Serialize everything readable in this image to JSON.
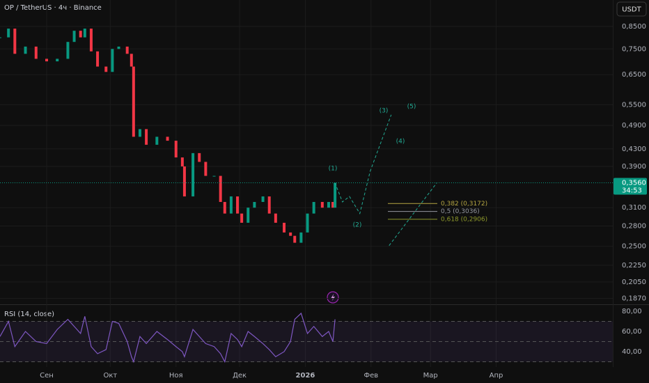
{
  "header": {
    "title": "OP / TetherUS · 4ч · Binance",
    "currency_button": "USDT"
  },
  "chart_data": [
    {
      "type": "candlestick",
      "log_scale": true,
      "grid": true,
      "up_color": "#089981",
      "down_color": "#f23645",
      "x": [
        -22,
        -18,
        -15,
        -10,
        -5,
        0,
        5,
        10,
        13,
        16,
        18,
        21,
        24,
        28,
        31,
        34,
        38,
        40,
        41,
        44,
        47,
        52,
        57,
        61,
        64,
        65,
        69,
        72,
        75,
        79,
        82,
        84,
        87,
        90,
        92,
        95,
        98,
        102,
        105,
        108,
        112,
        115,
        117,
        120,
        123,
        126,
        130,
        133,
        135,
        136
      ],
      "series": [
        {
          "values": [
            0.8,
            0.84,
            0.73,
            0.76,
            0.71,
            0.7,
            0.71,
            0.78,
            0.83,
            0.8,
            0.84,
            0.74,
            0.68,
            0.66,
            0.75,
            0.76,
            0.73,
            0.68,
            0.46,
            0.48,
            0.44,
            0.46,
            0.45,
            0.41,
            0.39,
            0.33,
            0.42,
            0.4,
            0.37,
            0.37,
            0.32,
            0.3,
            0.33,
            0.3,
            0.285,
            0.31,
            0.32,
            0.33,
            0.3,
            0.285,
            0.27,
            0.265,
            0.255,
            0.27,
            0.3,
            0.32,
            0.31,
            0.32,
            0.31,
            0.356
          ]
        }
      ],
      "xlim": [
        -22,
        267
      ],
      "xticks": [
        {
          "value": 0,
          "label": "Сен"
        },
        {
          "value": 30,
          "label": "Окт"
        },
        {
          "value": 61,
          "label": "Ноя"
        },
        {
          "value": 91,
          "label": "Дек"
        },
        {
          "value": 122,
          "label": "2026"
        },
        {
          "value": 153,
          "label": "Фев"
        },
        {
          "value": 181,
          "label": "Мар"
        },
        {
          "value": 212,
          "label": "Апр"
        }
      ],
      "ylim": [
        0.181,
        0.985
      ],
      "yticks": [
        {
          "value": 0.85,
          "label": "0,8500"
        },
        {
          "value": 0.75,
          "label": "0,7500"
        },
        {
          "value": 0.65,
          "label": "0,6500"
        },
        {
          "value": 0.55,
          "label": "0,5500"
        },
        {
          "value": 0.49,
          "label": "0,4900"
        },
        {
          "value": 0.43,
          "label": "0,4300"
        },
        {
          "value": 0.39,
          "label": "0,3900"
        },
        {
          "value": 0.31,
          "label": "0,3100"
        },
        {
          "value": 0.28,
          "label": "0,2800"
        },
        {
          "value": 0.25,
          "label": "0,2500"
        },
        {
          "value": 0.225,
          "label": "0,2250"
        },
        {
          "value": 0.205,
          "label": "0,2050"
        },
        {
          "value": 0.187,
          "label": "0,1870"
        }
      ],
      "last_price": {
        "value": 0.356,
        "label": "0,3560",
        "countdown": "34:53",
        "color": "#089981"
      },
      "projections": [
        {
          "x": [
            136,
            139.5,
            142.8,
            147.7,
            152.6,
            162.5
          ],
          "values": [
            0.356,
            0.32,
            0.33,
            0.3,
            0.38,
            0.52
          ],
          "color": "#22ab94"
        },
        {
          "x": [
            161.5,
            184
          ],
          "values": [
            0.251,
            0.356
          ],
          "color": "#22ab94"
        }
      ],
      "wave_labels": [
        "(1)",
        "(2)",
        "(3)",
        "(4)",
        "(5)"
      ],
      "fib_levels": [
        {
          "value": 0.3172,
          "label": "0,382 (0,3172)",
          "color": "#b5a642"
        },
        {
          "value": 0.3036,
          "label": "0,5 (0,3036)",
          "color": "#9598a1"
        },
        {
          "value": 0.2906,
          "label": "0,618 (0,2906)",
          "color": "#8f9a2c"
        }
      ]
    },
    {
      "type": "line",
      "title": "RSI (14, close)",
      "color": "#7e57c2",
      "x": [
        -22,
        -18,
        -15,
        -10,
        -5,
        0,
        5,
        10,
        13,
        16,
        18,
        21,
        24,
        28,
        31,
        34,
        38,
        40,
        41,
        44,
        47,
        52,
        57,
        61,
        64,
        65,
        69,
        72,
        75,
        79,
        82,
        84,
        87,
        90,
        92,
        95,
        98,
        102,
        105,
        108,
        112,
        115,
        117,
        120,
        123,
        126,
        130,
        133,
        135,
        136
      ],
      "series": [
        {
          "name": "RSI",
          "values": [
            55,
            70,
            45,
            60,
            50,
            48,
            62,
            72,
            65,
            58,
            75,
            45,
            38,
            42,
            70,
            68,
            50,
            35,
            30,
            55,
            48,
            60,
            52,
            45,
            40,
            35,
            62,
            55,
            48,
            45,
            38,
            30,
            58,
            52,
            45,
            60,
            55,
            48,
            42,
            35,
            40,
            50,
            72,
            78,
            58,
            65,
            55,
            60,
            50,
            72
          ]
        }
      ],
      "xlim": [
        -22,
        267
      ],
      "ylim": [
        26.2,
        86.2
      ],
      "yticks": [
        {
          "value": 80,
          "label": "80,00"
        },
        {
          "value": 60,
          "label": "60,00"
        },
        {
          "value": 40,
          "label": "40,00"
        }
      ],
      "levels": [
        70,
        50,
        30
      ]
    }
  ]
}
